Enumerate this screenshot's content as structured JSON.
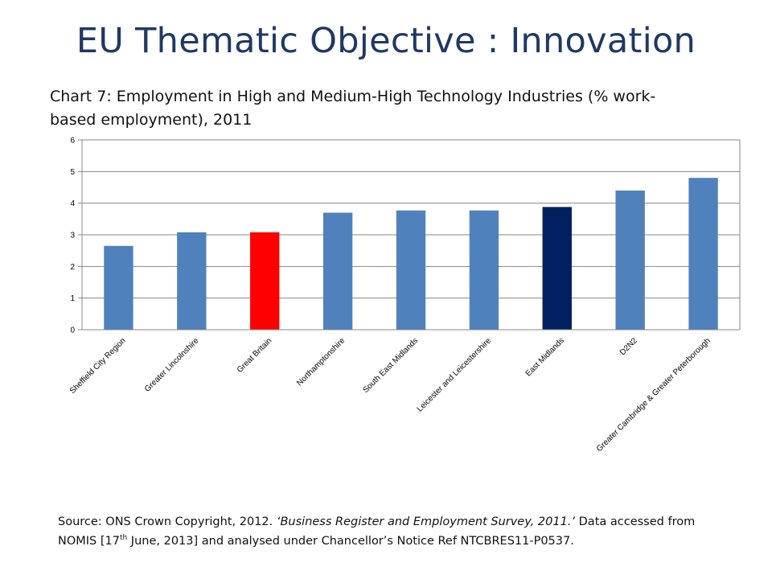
{
  "slide": {
    "title": "EU Thematic Objective : Innovation"
  },
  "source": {
    "prefix": "Source: ONS Crown Copyright, 2012. ",
    "survey": "‘Business Register and Employment Survey, 2011.’",
    "middle": "   Data accessed from NOMIS [17",
    "superscript": "th",
    "suffix": " June, 2013] and analysed under Chancellor’s Notice Ref NTCBRES11-P0537."
  },
  "chart_data": {
    "type": "bar",
    "title": "Chart 7: Employment in High and Medium-High Technology Industries (% work-based employment), 2011",
    "xlabel": "",
    "ylabel": "",
    "ylim": [
      0,
      6
    ],
    "yticks": [
      0,
      1,
      2,
      3,
      4,
      5,
      6
    ],
    "grid": true,
    "legend": "none",
    "categories": [
      "Sheffield City Region",
      "Greater Lincolnshire",
      "Great Britain",
      "Northamptonshire",
      "South East Midlands",
      "Leicester and Leicestershire",
      "East Midlands",
      "D2N2",
      "Greater Cambridge & Greater Peterborough"
    ],
    "values": [
      2.65,
      3.08,
      3.08,
      3.7,
      3.77,
      3.77,
      3.88,
      4.4,
      4.8
    ],
    "colors": [
      "#4f81bd",
      "#4f81bd",
      "#ff0000",
      "#4f81bd",
      "#4f81bd",
      "#4f81bd",
      "#002060",
      "#4f81bd",
      "#4f81bd"
    ]
  }
}
